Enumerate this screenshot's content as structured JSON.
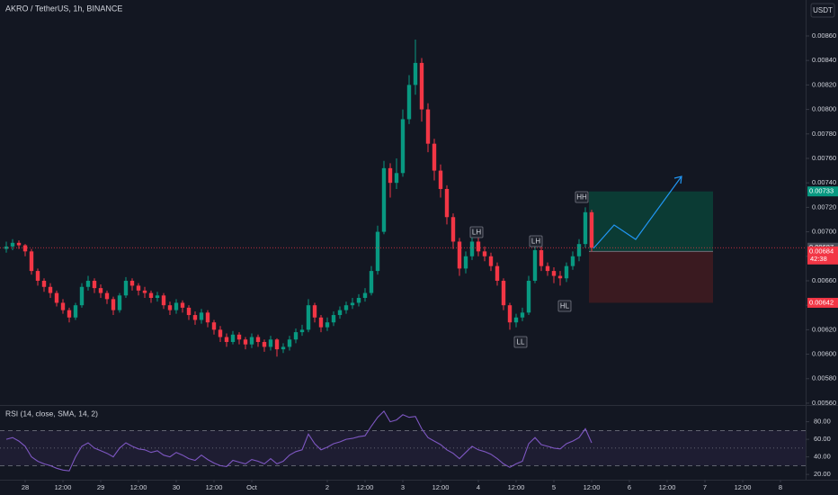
{
  "chart_data": {
    "type": "candlestick",
    "title": "AKRO / TetherUS, 1h, BINANCE",
    "currency_button": "USDT",
    "up_color": "#089981",
    "down_color": "#f23645",
    "xlim": [
      -4,
      124
    ],
    "ylim": [
      0.005585,
      0.008894
    ],
    "xticks": [
      {
        "value": 0,
        "label": "28"
      },
      {
        "value": 6,
        "label": "12:00"
      },
      {
        "value": 12,
        "label": "29"
      },
      {
        "value": 18,
        "label": "12:00"
      },
      {
        "value": 24,
        "label": "30"
      },
      {
        "value": 30,
        "label": "12:00"
      },
      {
        "value": 36,
        "label": "Oct"
      },
      {
        "value": 48,
        "label": "2"
      },
      {
        "value": 54,
        "label": "12:00"
      },
      {
        "value": 60,
        "label": "3"
      },
      {
        "value": 66,
        "label": "12:00"
      },
      {
        "value": 72,
        "label": "4"
      },
      {
        "value": 78,
        "label": "12:00"
      },
      {
        "value": 84,
        "label": "5"
      },
      {
        "value": 90,
        "label": "12:00"
      },
      {
        "value": 96,
        "label": "6"
      },
      {
        "value": 102,
        "label": "12:00"
      },
      {
        "value": 108,
        "label": "7"
      },
      {
        "value": 114,
        "label": "12:00"
      },
      {
        "value": 120,
        "label": "8"
      }
    ],
    "yticks": [
      {
        "value": 0.0056,
        "label": "0.00560"
      },
      {
        "value": 0.0058,
        "label": "0.00580"
      },
      {
        "value": 0.006,
        "label": "0.00600"
      },
      {
        "value": 0.0062,
        "label": "0.00620"
      },
      {
        "value": 0.0064,
        "label": "0.00640"
      },
      {
        "value": 0.0066,
        "label": "0.00660"
      },
      {
        "value": 0.0068,
        "label": "0.00680"
      },
      {
        "value": 0.007,
        "label": "0.00700"
      },
      {
        "value": 0.0072,
        "label": "0.00720"
      },
      {
        "value": 0.0074,
        "label": "0.00740"
      },
      {
        "value": 0.0076,
        "label": "0.00760"
      },
      {
        "value": 0.0078,
        "label": "0.00780"
      },
      {
        "value": 0.008,
        "label": "0.00800"
      },
      {
        "value": 0.0082,
        "label": "0.00820"
      },
      {
        "value": 0.0084,
        "label": "0.00840"
      },
      {
        "value": 0.0086,
        "label": "0.00860"
      }
    ],
    "x": [
      -3,
      -2,
      -1,
      0,
      1,
      2,
      3,
      4,
      5,
      6,
      7,
      8,
      9,
      10,
      11,
      12,
      13,
      14,
      15,
      16,
      17,
      18,
      19,
      20,
      21,
      22,
      23,
      24,
      25,
      26,
      27,
      28,
      29,
      30,
      31,
      32,
      33,
      34,
      35,
      36,
      37,
      38,
      39,
      40,
      41,
      42,
      43,
      44,
      45,
      46,
      47,
      48,
      49,
      50,
      51,
      52,
      53,
      54,
      55,
      56,
      57,
      58,
      59,
      60,
      61,
      62,
      63,
      64,
      65,
      66,
      67,
      68,
      69,
      70,
      71,
      72,
      73,
      74,
      75,
      76,
      77,
      78,
      79,
      80,
      81,
      82,
      83,
      84,
      85,
      86,
      87,
      88,
      89,
      90
    ],
    "candles": [
      [
        0.00686,
        0.00692,
        0.00683,
        0.00688
      ],
      [
        0.00688,
        0.00694,
        0.00685,
        0.00691
      ],
      [
        0.00691,
        0.00693,
        0.00686,
        0.00689
      ],
      [
        0.00689,
        0.0069,
        0.0068,
        0.00684
      ],
      [
        0.00684,
        0.00686,
        0.00665,
        0.00668
      ],
      [
        0.00668,
        0.0067,
        0.00656,
        0.0066
      ],
      [
        0.0066,
        0.00662,
        0.00651,
        0.00655
      ],
      [
        0.00655,
        0.00658,
        0.00646,
        0.0065
      ],
      [
        0.0065,
        0.00652,
        0.00639,
        0.00642
      ],
      [
        0.00642,
        0.00645,
        0.00633,
        0.00636
      ],
      [
        0.00636,
        0.00638,
        0.00626,
        0.0063
      ],
      [
        0.0063,
        0.00642,
        0.00628,
        0.0064
      ],
      [
        0.0064,
        0.00658,
        0.00638,
        0.00655
      ],
      [
        0.00655,
        0.00664,
        0.00652,
        0.0066
      ],
      [
        0.0066,
        0.00662,
        0.0065,
        0.00654
      ],
      [
        0.00654,
        0.00657,
        0.00646,
        0.0065
      ],
      [
        0.0065,
        0.00652,
        0.00641,
        0.00645
      ],
      [
        0.00645,
        0.00647,
        0.00632,
        0.00636
      ],
      [
        0.00636,
        0.0065,
        0.00634,
        0.00648
      ],
      [
        0.00648,
        0.00663,
        0.00646,
        0.0066
      ],
      [
        0.0066,
        0.00662,
        0.00652,
        0.00656
      ],
      [
        0.00656,
        0.00658,
        0.00648,
        0.00652
      ],
      [
        0.00652,
        0.00655,
        0.00646,
        0.0065
      ],
      [
        0.0065,
        0.00652,
        0.00642,
        0.00646
      ],
      [
        0.00646,
        0.00651,
        0.00643,
        0.00648
      ],
      [
        0.00648,
        0.0065,
        0.00637,
        0.0064
      ],
      [
        0.0064,
        0.00643,
        0.00632,
        0.00636
      ],
      [
        0.00636,
        0.00645,
        0.00633,
        0.00642
      ],
      [
        0.00642,
        0.00644,
        0.00634,
        0.00638
      ],
      [
        0.00638,
        0.0064,
        0.00628,
        0.00632
      ],
      [
        0.00632,
        0.00635,
        0.00624,
        0.00628
      ],
      [
        0.00628,
        0.00637,
        0.00625,
        0.00634
      ],
      [
        0.00634,
        0.00636,
        0.00622,
        0.00626
      ],
      [
        0.00626,
        0.00628,
        0.00616,
        0.0062
      ],
      [
        0.0062,
        0.00623,
        0.0061,
        0.00614
      ],
      [
        0.00614,
        0.00617,
        0.00606,
        0.0061
      ],
      [
        0.0061,
        0.00619,
        0.00608,
        0.00616
      ],
      [
        0.00616,
        0.00618,
        0.00608,
        0.00612
      ],
      [
        0.00612,
        0.00614,
        0.00604,
        0.00608
      ],
      [
        0.00608,
        0.00617,
        0.00605,
        0.00614
      ],
      [
        0.00614,
        0.00616,
        0.00606,
        0.0061
      ],
      [
        0.0061,
        0.00612,
        0.00602,
        0.00606
      ],
      [
        0.00606,
        0.00615,
        0.00603,
        0.00612
      ],
      [
        0.00612,
        0.00613,
        0.00598,
        0.00604
      ],
      [
        0.00604,
        0.00609,
        0.00601,
        0.00606
      ],
      [
        0.00606,
        0.00615,
        0.00603,
        0.00612
      ],
      [
        0.00612,
        0.00621,
        0.00609,
        0.00618
      ],
      [
        0.00618,
        0.00624,
        0.00615,
        0.0062
      ],
      [
        0.0062,
        0.00645,
        0.00618,
        0.0064
      ],
      [
        0.0064,
        0.00642,
        0.00626,
        0.0063
      ],
      [
        0.0063,
        0.00632,
        0.00618,
        0.00622
      ],
      [
        0.00622,
        0.0063,
        0.00619,
        0.00626
      ],
      [
        0.00626,
        0.00635,
        0.00623,
        0.00632
      ],
      [
        0.00632,
        0.00639,
        0.00629,
        0.00636
      ],
      [
        0.00636,
        0.00643,
        0.00633,
        0.0064
      ],
      [
        0.0064,
        0.00646,
        0.00637,
        0.00642
      ],
      [
        0.00642,
        0.00649,
        0.00639,
        0.00646
      ],
      [
        0.00646,
        0.00654,
        0.00643,
        0.0065
      ],
      [
        0.0065,
        0.00672,
        0.00648,
        0.00668
      ],
      [
        0.00668,
        0.00705,
        0.00665,
        0.007
      ],
      [
        0.007,
        0.00758,
        0.00698,
        0.00752
      ],
      [
        0.00752,
        0.00756,
        0.00728,
        0.0074
      ],
      [
        0.0074,
        0.0076,
        0.00735,
        0.00748
      ],
      [
        0.00748,
        0.008,
        0.00745,
        0.00792
      ],
      [
        0.00792,
        0.00828,
        0.00788,
        0.0082
      ],
      [
        0.0082,
        0.00857,
        0.00812,
        0.00838
      ],
      [
        0.00838,
        0.00842,
        0.0079,
        0.008
      ],
      [
        0.008,
        0.00805,
        0.00765,
        0.00772
      ],
      [
        0.00772,
        0.00776,
        0.00742,
        0.0075
      ],
      [
        0.0075,
        0.00755,
        0.00728,
        0.00735
      ],
      [
        0.00735,
        0.00738,
        0.00706,
        0.00712
      ],
      [
        0.00712,
        0.00715,
        0.00686,
        0.00692
      ],
      [
        0.00692,
        0.00695,
        0.00664,
        0.0067
      ],
      [
        0.0067,
        0.00684,
        0.00666,
        0.0068
      ],
      [
        0.0068,
        0.00698,
        0.00677,
        0.00692
      ],
      [
        0.00692,
        0.00695,
        0.0068,
        0.00684
      ],
      [
        0.00684,
        0.00688,
        0.00676,
        0.0068
      ],
      [
        0.0068,
        0.00683,
        0.00668,
        0.00672
      ],
      [
        0.00672,
        0.00675,
        0.00656,
        0.0066
      ],
      [
        0.0066,
        0.00662,
        0.00636,
        0.0064
      ],
      [
        0.0064,
        0.00642,
        0.0062,
        0.00626
      ],
      [
        0.00626,
        0.00633,
        0.00622,
        0.0063
      ],
      [
        0.0063,
        0.00638,
        0.00627,
        0.00634
      ],
      [
        0.00634,
        0.00664,
        0.00632,
        0.0066
      ],
      [
        0.0066,
        0.00695,
        0.00658,
        0.00685
      ],
      [
        0.00685,
        0.00688,
        0.00668,
        0.00672
      ],
      [
        0.00672,
        0.00675,
        0.00664,
        0.00668
      ],
      [
        0.00668,
        0.00671,
        0.00658,
        0.00664
      ],
      [
        0.00664,
        0.00668,
        0.00656,
        0.00662
      ],
      [
        0.00662,
        0.00675,
        0.00659,
        0.00672
      ],
      [
        0.00672,
        0.00684,
        0.00669,
        0.0068
      ],
      [
        0.0068,
        0.00694,
        0.00676,
        0.0069
      ],
      [
        0.0069,
        0.0072,
        0.00687,
        0.00716
      ],
      [
        0.00716,
        0.00718,
        0.00684,
        0.00687
      ]
    ],
    "position": {
      "target": 0.00733,
      "entry": 0.00684,
      "stop": 0.00642
    },
    "countdown": "42:38",
    "annotations": [
      "HH",
      "LH",
      "LH",
      "HL",
      "LL"
    ],
    "rsi": {
      "title": "RSI (14, close, SMA, 14, 2)",
      "color": "#7e57c2",
      "ylim": [
        14,
        97
      ],
      "yticks": [
        {
          "value": 80,
          "label": "80.00"
        },
        {
          "value": 60,
          "label": "60.00"
        },
        {
          "value": 40,
          "label": "40.00"
        },
        {
          "value": 20,
          "label": "20.00"
        }
      ],
      "bands": [
        30,
        70
      ],
      "mid": 50,
      "values": [
        60,
        62,
        58,
        52,
        40,
        35,
        32,
        30,
        27,
        25,
        24,
        40,
        52,
        56,
        50,
        47,
        44,
        40,
        50,
        56,
        52,
        49,
        48,
        45,
        47,
        42,
        40,
        45,
        42,
        38,
        36,
        42,
        37,
        33,
        30,
        29,
        36,
        34,
        32,
        37,
        35,
        32,
        38,
        32,
        35,
        42,
        46,
        48,
        66,
        55,
        48,
        51,
        55,
        57,
        60,
        61,
        63,
        64,
        75,
        85,
        92,
        80,
        82,
        88,
        85,
        86,
        72,
        62,
        58,
        54,
        48,
        44,
        38,
        45,
        52,
        48,
        46,
        43,
        38,
        32,
        28,
        32,
        35,
        55,
        62,
        54,
        52,
        50,
        49,
        55,
        58,
        62,
        72,
        56
      ]
    }
  }
}
